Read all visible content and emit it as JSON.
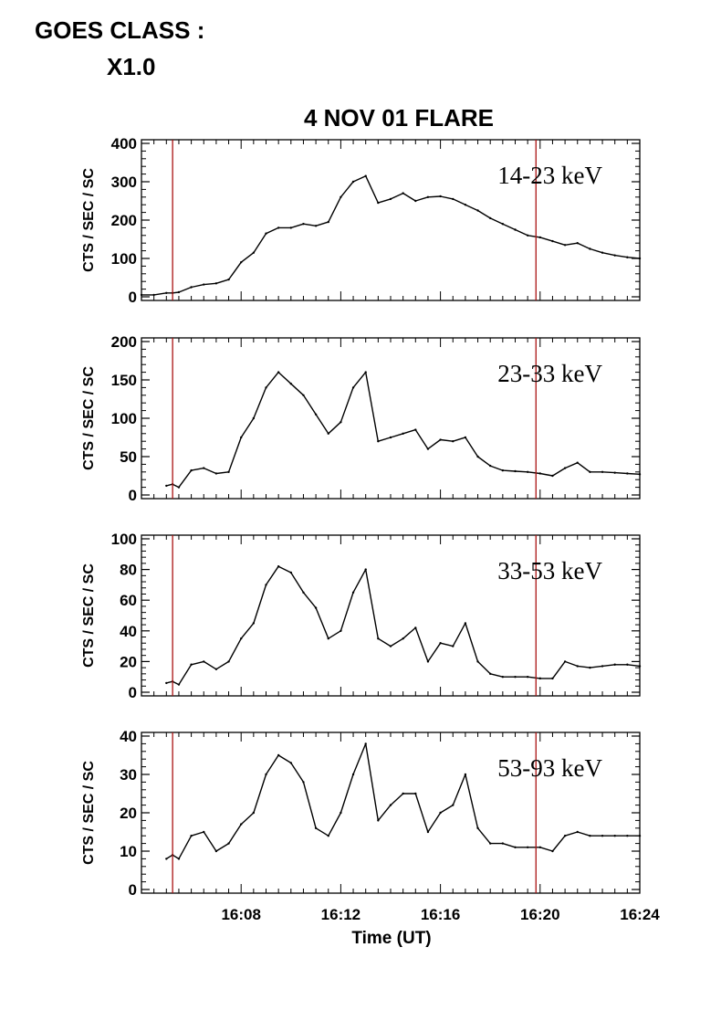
{
  "goes": {
    "line1": "GOES CLASS :",
    "line2": "X1.0"
  },
  "chart_data": {
    "type": "line",
    "title": "4 NOV 01 FLARE",
    "xlabel": "Time (UT)",
    "ylabel": "CTS / SEC / SC",
    "xlim": [
      "16:04:00",
      "16:24:00"
    ],
    "x_ticks": [
      "16:08",
      "16:12",
      "16:16",
      "16:20",
      "16:24"
    ],
    "grid": false,
    "line_color": "#000000",
    "marker_color": "#aa1111",
    "vertical_markers": [
      "16:05:15",
      "16:19:50"
    ],
    "x": [
      "16:04:00",
      "16:04:30",
      "16:05:00",
      "16:05:15",
      "16:05:30",
      "16:06:00",
      "16:06:30",
      "16:07:00",
      "16:07:30",
      "16:08:00",
      "16:08:30",
      "16:09:00",
      "16:09:30",
      "16:10:00",
      "16:10:30",
      "16:11:00",
      "16:11:30",
      "16:12:00",
      "16:12:30",
      "16:13:00",
      "16:13:30",
      "16:14:00",
      "16:14:30",
      "16:15:00",
      "16:15:30",
      "16:16:00",
      "16:16:30",
      "16:17:00",
      "16:17:30",
      "16:18:00",
      "16:18:30",
      "16:19:00",
      "16:19:30",
      "16:20:00",
      "16:20:30",
      "16:21:00",
      "16:21:30",
      "16:22:00",
      "16:22:30",
      "16:23:00",
      "16:23:30",
      "16:24:00"
    ],
    "panels": [
      {
        "label": "14-23 keV",
        "ylim": [
          0,
          400
        ],
        "yticks": [
          0,
          100,
          200,
          300,
          400
        ],
        "values": [
          5,
          5,
          10,
          10,
          12,
          25,
          32,
          35,
          45,
          90,
          115,
          165,
          180,
          180,
          190,
          185,
          195,
          260,
          300,
          315,
          245,
          255,
          270,
          250,
          260,
          262,
          255,
          240,
          225,
          205,
          190,
          175,
          160,
          155,
          145,
          135,
          140,
          125,
          115,
          108,
          103,
          100
        ]
      },
      {
        "label": "23-33 keV",
        "ylim": [
          0,
          200
        ],
        "yticks": [
          0,
          50,
          100,
          150,
          200
        ],
        "values": [
          null,
          null,
          12,
          14,
          10,
          32,
          35,
          28,
          30,
          75,
          100,
          140,
          160,
          145,
          130,
          105,
          80,
          95,
          140,
          160,
          70,
          75,
          80,
          85,
          60,
          72,
          70,
          75,
          50,
          38,
          32,
          31,
          30,
          28,
          25,
          35,
          42,
          30,
          30,
          29,
          28,
          27
        ]
      },
      {
        "label": "33-53 keV",
        "ylim": [
          0,
          100
        ],
        "yticks": [
          0,
          20,
          40,
          60,
          80,
          100
        ],
        "values": [
          null,
          null,
          6,
          7,
          5,
          18,
          20,
          15,
          20,
          35,
          45,
          70,
          82,
          78,
          65,
          55,
          35,
          40,
          65,
          80,
          35,
          30,
          35,
          42,
          20,
          32,
          30,
          45,
          20,
          12,
          10,
          10,
          10,
          9,
          9,
          20,
          17,
          16,
          17,
          18,
          18,
          17
        ]
      },
      {
        "label": "53-93 keV",
        "ylim": [
          0,
          40
        ],
        "yticks": [
          0,
          10,
          20,
          30,
          40
        ],
        "values": [
          null,
          null,
          8,
          9,
          8,
          14,
          15,
          10,
          12,
          17,
          20,
          30,
          35,
          33,
          28,
          16,
          14,
          20,
          30,
          38,
          18,
          22,
          25,
          25,
          15,
          20,
          22,
          30,
          16,
          12,
          12,
          11,
          11,
          11,
          10,
          14,
          15,
          14,
          14,
          14,
          14,
          14
        ]
      }
    ]
  }
}
